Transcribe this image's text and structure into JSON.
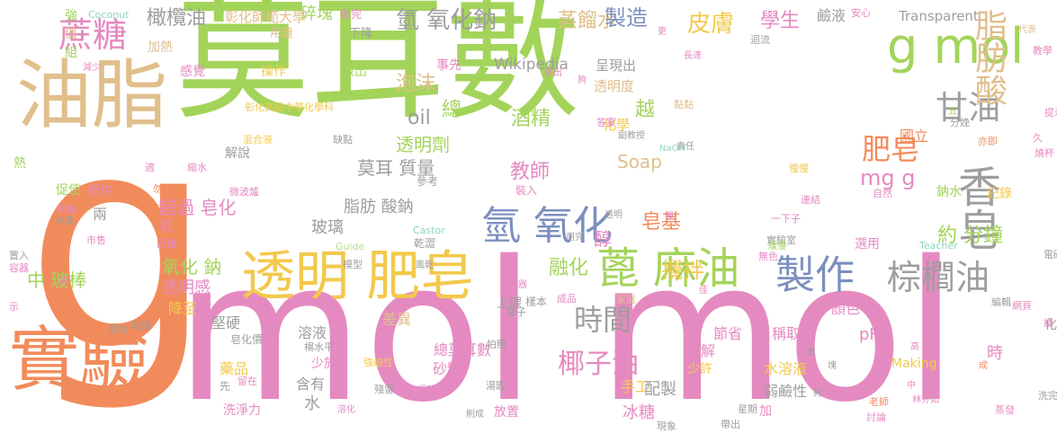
{
  "colors": {
    "green": "#a3d45a",
    "orange": "#f28b5b",
    "pink": "#e58ac0",
    "tan": "#e0bf8c",
    "gray": "#9e9e9e",
    "blue": "#7b8fbf",
    "yellow": "#f2c94c",
    "lightgreen": "#b7dd88",
    "teal": "#8fd3c4"
  },
  "words": [
    {
      "text": "莫耳數",
      "color": "green"
    },
    {
      "text": "mol mol",
      "color": "pink"
    },
    {
      "text": "g",
      "color": "orange"
    },
    {
      "text": "油脂",
      "color": "tan"
    },
    {
      "text": "實驗",
      "color": "orange"
    },
    {
      "text": "透明 肥皂",
      "color": "yellow"
    },
    {
      "text": "g mol",
      "color": "green"
    },
    {
      "text": "蓖 麻油",
      "color": "green"
    },
    {
      "text": "氫 氧化",
      "color": "blue"
    },
    {
      "text": "製作",
      "color": "blue"
    },
    {
      "text": "棕櫚油",
      "color": "gray"
    },
    {
      "text": "香皂",
      "color": "gray"
    },
    {
      "text": "甘油",
      "color": "gray"
    },
    {
      "text": "脂肪酸",
      "color": "tan"
    },
    {
      "text": "蔗糖",
      "color": "pink"
    },
    {
      "text": "肥皂",
      "color": "orange"
    },
    {
      "text": "時間",
      "color": "gray"
    },
    {
      "text": "椰子油",
      "color": "pink"
    },
    {
      "text": "氫 氧化鈉",
      "color": "gray"
    },
    {
      "text": "蒸餾水",
      "color": "tan"
    },
    {
      "text": "製造",
      "color": "blue"
    },
    {
      "text": "皮膚",
      "color": "yellow"
    },
    {
      "text": "學生",
      "color": "pink"
    },
    {
      "text": "橄欖油",
      "color": "gray"
    },
    {
      "text": "Wikipedia",
      "color": "gray"
    },
    {
      "text": "酒精",
      "color": "green"
    },
    {
      "text": "Soap",
      "color": "tan"
    },
    {
      "text": "mg g",
      "color": "pink"
    },
    {
      "text": "約 分鐘",
      "color": "green"
    },
    {
      "text": "莫耳 質量",
      "color": "gray"
    },
    {
      "text": "透明劑",
      "color": "green"
    },
    {
      "text": "泡沫",
      "color": "tan"
    },
    {
      "text": "oil",
      "color": "gray"
    },
    {
      "text": "總",
      "color": "green"
    },
    {
      "text": "越",
      "color": "green"
    },
    {
      "text": "教師",
      "color": "pink"
    },
    {
      "text": "融化",
      "color": "green"
    },
    {
      "text": "皂基",
      "color": "orange"
    },
    {
      "text": "攪拌",
      "color": "yellow"
    },
    {
      "text": "醇",
      "color": "pink"
    },
    {
      "text": "氧化 鈉",
      "color": "green"
    },
    {
      "text": "中 玻棒",
      "color": "green"
    },
    {
      "text": "透明感",
      "color": "pink"
    },
    {
      "text": "超過 皂化",
      "color": "pink"
    },
    {
      "text": "脂肪 酸鈉",
      "color": "gray"
    },
    {
      "text": "玻璃",
      "color": "gray"
    },
    {
      "text": "國立",
      "color": "orange"
    },
    {
      "text": "化學",
      "color": "yellow"
    },
    {
      "text": "透明度",
      "color": "tan"
    },
    {
      "text": "呈現出",
      "color": "gray"
    },
    {
      "text": "事先",
      "color": "pink"
    },
    {
      "text": "鹼液",
      "color": "gray"
    },
    {
      "text": "碎塊",
      "color": "green"
    },
    {
      "text": "做完",
      "color": "pink"
    },
    {
      "text": "彰化師範大學",
      "color": "tan"
    },
    {
      "text": "Coconut",
      "color": "teal"
    },
    {
      "text": "Transparent",
      "color": "gray"
    },
    {
      "text": "安心",
      "color": "pink"
    },
    {
      "text": "強",
      "color": "green"
    },
    {
      "text": "值",
      "color": "tan"
    },
    {
      "text": "組",
      "color": "green"
    },
    {
      "text": "加熱",
      "color": "tan"
    },
    {
      "text": "用量",
      "color": "tan"
    },
    {
      "text": "下降",
      "color": "gray"
    },
    {
      "text": "感覺",
      "color": "pink"
    },
    {
      "text": "操作",
      "color": "yellow"
    },
    {
      "text": "做出",
      "color": "green"
    },
    {
      "text": "減少",
      "color": "pink"
    },
    {
      "text": "彰化高級中學化學科",
      "color": "yellow"
    },
    {
      "text": "混合液",
      "color": "yellow"
    },
    {
      "text": "缺點",
      "color": "gray"
    },
    {
      "text": "解說",
      "color": "gray"
    },
    {
      "text": "促使",
      "color": "green"
    },
    {
      "text": "提供",
      "color": "pink"
    },
    {
      "text": "兩",
      "color": "gray"
    },
    {
      "text": "皂",
      "color": "pink"
    },
    {
      "text": "熱",
      "color": "green"
    },
    {
      "text": "縮水",
      "color": "pink"
    },
    {
      "text": "微波爐",
      "color": "pink"
    },
    {
      "text": "參考",
      "color": "gray"
    },
    {
      "text": "緊繃",
      "color": "pink"
    },
    {
      "text": "作業",
      "color": "gray"
    },
    {
      "text": "市售",
      "color": "pink"
    },
    {
      "text": "Castor",
      "color": "teal"
    },
    {
      "text": "乾澀",
      "color": "gray"
    },
    {
      "text": "Guide",
      "color": "lightgreen"
    },
    {
      "text": "困難",
      "color": "pink"
    },
    {
      "text": "置入",
      "color": "gray"
    },
    {
      "text": "容器",
      "color": "pink"
    },
    {
      "text": "模型",
      "color": "gray"
    },
    {
      "text": "溶液",
      "color": "gray"
    },
    {
      "text": "風乾",
      "color": "gray"
    },
    {
      "text": "攪拌器",
      "color": "pink"
    },
    {
      "text": "上課",
      "color": "gray"
    },
    {
      "text": "樣子",
      "color": "gray"
    },
    {
      "text": "成品",
      "color": "pink"
    },
    {
      "text": "家庭",
      "color": "tan"
    },
    {
      "text": "降至",
      "color": "yellow"
    },
    {
      "text": "堅硬",
      "color": "gray"
    },
    {
      "text": "差異",
      "color": "tan"
    },
    {
      "text": "藥品",
      "color": "yellow"
    },
    {
      "text": "少於",
      "color": "pink"
    },
    {
      "text": "含有",
      "color": "gray"
    },
    {
      "text": "水",
      "color": "gray"
    },
    {
      "text": "總莫耳數",
      "color": "pink"
    },
    {
      "text": "砂糖",
      "color": "pink"
    },
    {
      "text": "手工",
      "color": "yellow"
    },
    {
      "text": "配製",
      "color": "gray"
    },
    {
      "text": "冰糖",
      "color": "pink"
    },
    {
      "text": "溶解",
      "color": "pink"
    },
    {
      "text": "少許",
      "color": "yellow"
    },
    {
      "text": "節省",
      "color": "pink"
    },
    {
      "text": "稱取",
      "color": "pink"
    },
    {
      "text": "水溶液",
      "color": "yellow"
    },
    {
      "text": "弱鹼性",
      "color": "gray"
    },
    {
      "text": "時",
      "color": "pink"
    },
    {
      "text": "pH",
      "color": "pink"
    },
    {
      "text": "顏色",
      "color": "pink"
    },
    {
      "text": "Making",
      "color": "yellow"
    },
    {
      "text": "選用",
      "color": "pink"
    },
    {
      "text": "洗淨力",
      "color": "pink"
    },
    {
      "text": "先",
      "color": "gray"
    },
    {
      "text": "留在",
      "color": "pink"
    },
    {
      "text": "放置",
      "color": "pink"
    },
    {
      "text": "加",
      "color": "pink"
    },
    {
      "text": "鈉水",
      "color": "green"
    },
    {
      "text": "記錄",
      "color": "yellow"
    },
    {
      "text": "分娩",
      "color": "gray"
    },
    {
      "text": "久",
      "color": "pink"
    },
    {
      "text": "燒杯",
      "color": "pink"
    },
    {
      "text": "慢慢",
      "color": "yellow"
    },
    {
      "text": "連結",
      "color": "pink"
    },
    {
      "text": "自然",
      "color": "pink"
    },
    {
      "text": "Teacher",
      "color": "teal"
    },
    {
      "text": "一下子",
      "color": "pink"
    },
    {
      "text": "實驗室",
      "color": "gray"
    },
    {
      "text": "無色",
      "color": "pink"
    },
    {
      "text": "緩慢",
      "color": "green"
    },
    {
      "text": "編輯",
      "color": "gray"
    },
    {
      "text": "網頁",
      "color": "pink"
    },
    {
      "text": "化學系",
      "color": "gray"
    },
    {
      "text": "高",
      "color": "pink"
    },
    {
      "text": "老師",
      "color": "orange"
    },
    {
      "text": "討論",
      "color": "pink"
    },
    {
      "text": "蒸發",
      "color": "pink"
    },
    {
      "text": "洗完",
      "color": "gray"
    },
    {
      "text": "中",
      "color": "pink"
    },
    {
      "text": "林芬如",
      "color": "pink"
    },
    {
      "text": "代表",
      "color": "tan"
    },
    {
      "text": "教學",
      "color": "pink"
    },
    {
      "text": "提示",
      "color": "pink"
    },
    {
      "text": "五",
      "color": "green"
    },
    {
      "text": "亦即",
      "color": "orange"
    },
    {
      "text": "副教授",
      "color": "gray"
    },
    {
      "text": "NaOH",
      "color": "teal"
    },
    {
      "text": "責任",
      "color": "gray"
    },
    {
      "text": "黏黏",
      "color": "tan"
    },
    {
      "text": "迴流",
      "color": "gray"
    },
    {
      "text": "長達",
      "color": "pink"
    },
    {
      "text": "更",
      "color": "pink"
    },
    {
      "text": "答案",
      "color": "pink"
    },
    {
      "text": "夠",
      "color": "pink"
    },
    {
      "text": "拿出",
      "color": "pink"
    },
    {
      "text": "裝入",
      "color": "pink"
    },
    {
      "text": "裡",
      "color": "pink"
    },
    {
      "text": "透明",
      "color": "gray"
    },
    {
      "text": "用完",
      "color": "gray"
    },
    {
      "text": "佳",
      "color": "pink"
    },
    {
      "text": "手冊",
      "color": "pink"
    },
    {
      "text": "電磁",
      "color": "gray"
    },
    {
      "text": "請",
      "color": "pink"
    },
    {
      "text": "示",
      "color": "pink"
    },
    {
      "text": "段",
      "color": "pink"
    },
    {
      "text": "取出",
      "color": "gray"
    },
    {
      "text": "紀錄",
      "color": "gray"
    },
    {
      "text": "皂化價",
      "color": "gray"
    },
    {
      "text": "楊水平",
      "color": "gray"
    },
    {
      "text": "強鹼性",
      "color": "yellow"
    },
    {
      "text": "拍照",
      "color": "gray"
    },
    {
      "text": "湯匙",
      "color": "gray"
    },
    {
      "text": "殘留",
      "color": "gray"
    },
    {
      "text": "調動",
      "color": "pink"
    },
    {
      "text": "溶化",
      "color": "pink"
    },
    {
      "text": "削成",
      "color": "gray"
    },
    {
      "text": "星期",
      "color": "gray"
    },
    {
      "text": "帶出",
      "color": "gray"
    },
    {
      "text": "現象",
      "color": "gray"
    },
    {
      "text": "約",
      "color": "gray"
    },
    {
      "text": "處",
      "color": "gray"
    },
    {
      "text": "成",
      "color": "orange"
    },
    {
      "text": "塊",
      "color": "gray"
    },
    {
      "text": "適",
      "color": "pink"
    },
    {
      "text": "勿",
      "color": "orange"
    },
    {
      "text": "樣本",
      "color": "gray"
    },
    {
      "text": "mo",
      "color": "gray"
    }
  ]
}
